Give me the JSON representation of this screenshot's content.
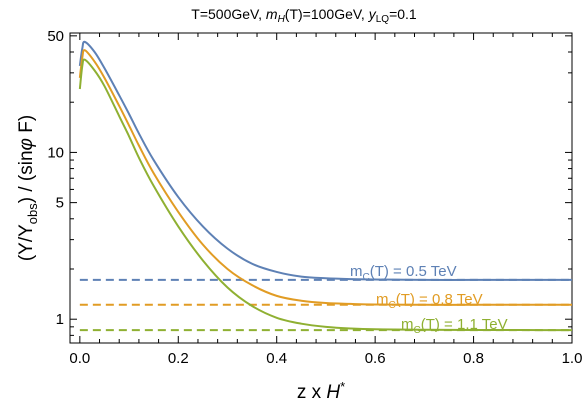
{
  "chart_data": {
    "type": "line",
    "title": "T=500GeV, m_H(T)=100GeV, y_LQ=0.1",
    "title_parts": {
      "a": "T=500GeV, ",
      "b": "m",
      "c": "H",
      "d": "(T)=100GeV, ",
      "e": "y",
      "f": "LQ",
      "g": "=0.1"
    },
    "xlabel": "z x H*",
    "xlabel_parts": {
      "a": "z x ",
      "b": "H",
      "c": "*"
    },
    "ylabel": "(Y/Y_obs) / (sinφ F)",
    "ylabel_parts": {
      "a": "(Y/Y",
      "b": "obs",
      "c": ") / (sin",
      "d": "φ",
      "e": " F)"
    },
    "xlim": [
      -0.02,
      1.0
    ],
    "ylim": [
      0.72,
      52
    ],
    "yscale": "log",
    "grid": false,
    "x_ticks": [
      0.0,
      0.2,
      0.4,
      0.6,
      0.8,
      1.0
    ],
    "x_tick_labels": [
      "0.0",
      "0.2",
      "0.4",
      "0.6",
      "0.8",
      "1.0"
    ],
    "y_ticks": [
      1,
      5,
      10,
      50
    ],
    "y_tick_labels": [
      "1",
      "5",
      "10",
      "50"
    ],
    "series": [
      {
        "label_parts": {
          "a": "m",
          "b": "C",
          "c": "(T) = 0.5 TeV"
        },
        "color": "#5e81b5",
        "asymptote": 1.72,
        "x": [
          0.0,
          0.005,
          0.01,
          0.03,
          0.05,
          0.08,
          0.1,
          0.12,
          0.15,
          0.2,
          0.25,
          0.3,
          0.35,
          0.4,
          0.45,
          0.5,
          0.55,
          0.6,
          0.7,
          0.8,
          0.9,
          1.0
        ],
        "y": [
          33,
          42,
          46,
          40,
          32,
          22,
          17,
          13,
          9.0,
          5.4,
          3.6,
          2.65,
          2.15,
          1.92,
          1.8,
          1.76,
          1.74,
          1.73,
          1.72,
          1.72,
          1.72,
          1.72
        ]
      },
      {
        "label_parts": {
          "a": "m",
          "b": "C",
          "c": "(T) = 0.8 TeV"
        },
        "color": "#e19c24",
        "asymptote": 1.22,
        "x": [
          0.0,
          0.005,
          0.01,
          0.03,
          0.05,
          0.08,
          0.1,
          0.12,
          0.15,
          0.2,
          0.25,
          0.3,
          0.35,
          0.4,
          0.45,
          0.5,
          0.55,
          0.6,
          0.7,
          0.8,
          0.9,
          1.0
        ],
        "y": [
          28,
          37,
          41,
          35,
          28,
          19,
          14.5,
          11,
          7.5,
          4.4,
          2.8,
          2.0,
          1.6,
          1.38,
          1.29,
          1.25,
          1.235,
          1.225,
          1.22,
          1.22,
          1.22,
          1.22
        ]
      },
      {
        "label_parts": {
          "a": "m",
          "b": "C",
          "c": "(T) = 1.1 TeV"
        },
        "color": "#8fb032",
        "asymptote": 0.86,
        "x": [
          0.0,
          0.005,
          0.01,
          0.03,
          0.05,
          0.08,
          0.1,
          0.12,
          0.15,
          0.2,
          0.25,
          0.3,
          0.35,
          0.4,
          0.45,
          0.5,
          0.55,
          0.6,
          0.7,
          0.8,
          0.9,
          1.0
        ],
        "y": [
          24,
          33,
          36,
          31,
          25,
          16.5,
          12.5,
          9.3,
          6.3,
          3.6,
          2.25,
          1.55,
          1.2,
          1.02,
          0.94,
          0.9,
          0.88,
          0.87,
          0.865,
          0.862,
          0.861,
          0.86
        ]
      }
    ]
  }
}
